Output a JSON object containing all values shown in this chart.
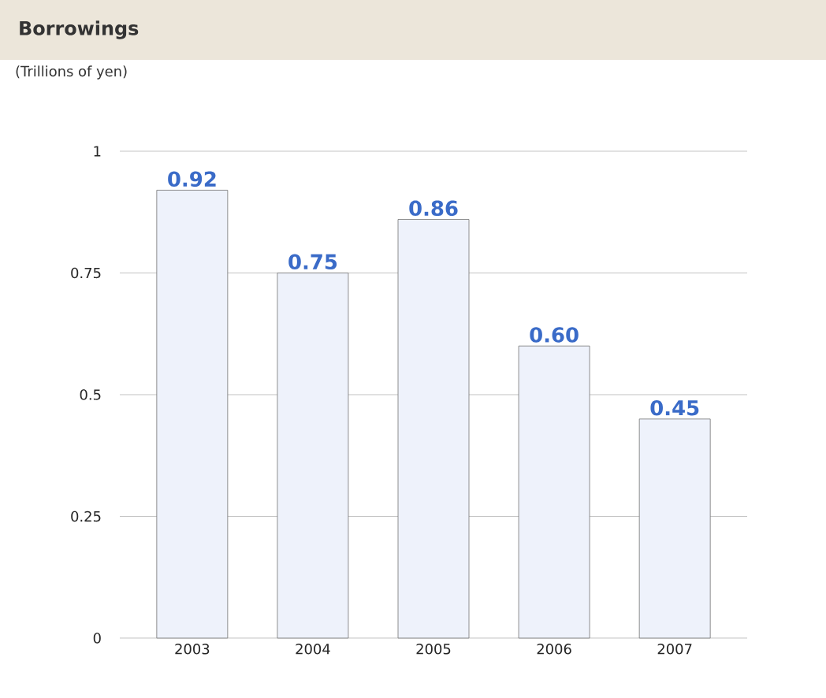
{
  "chart_data": {
    "type": "bar",
    "title": "Borrowings",
    "subtitle": "(Trillions of yen)",
    "categories": [
      "2003",
      "2004",
      "2005",
      "2006",
      "2007"
    ],
    "values": [
      0.92,
      0.75,
      0.86,
      0.6,
      0.45
    ],
    "value_labels": [
      "0.92",
      "0.75",
      "0.86",
      "0.60",
      "0.45"
    ],
    "color": "#eef2fb",
    "ylim": [
      0,
      1
    ],
    "yticks": [
      0,
      0.25,
      0.5,
      0.75,
      1
    ],
    "grid": "y"
  }
}
